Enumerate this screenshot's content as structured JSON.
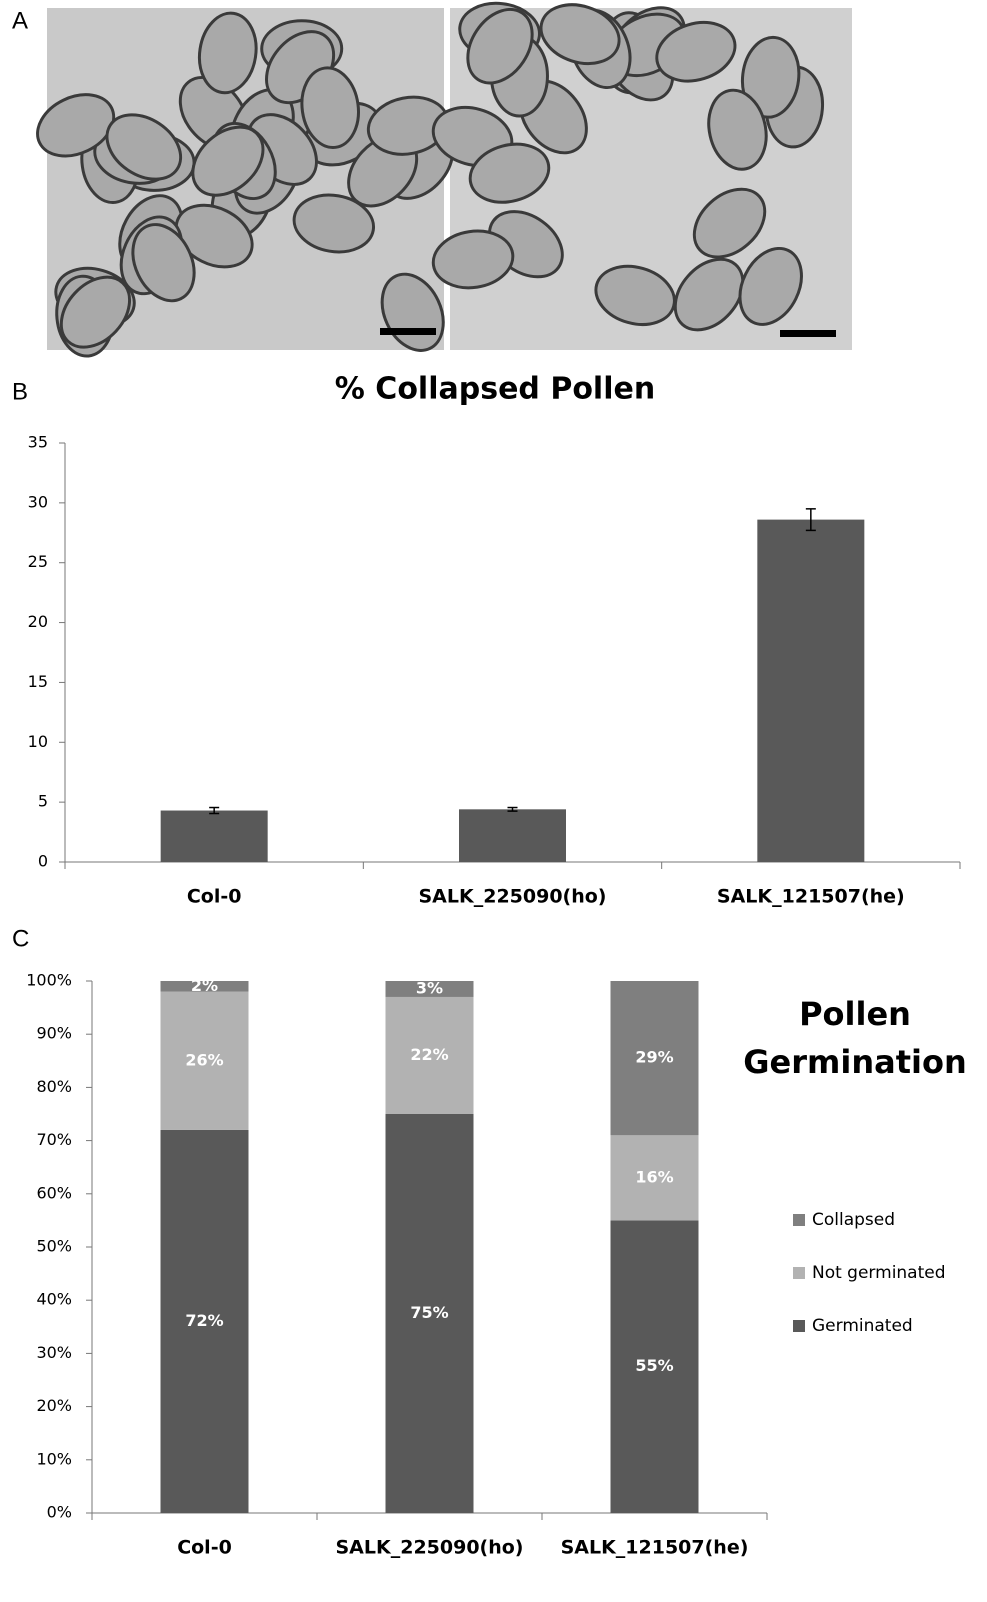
{
  "panel_labels": [
    "A",
    "B",
    "C"
  ],
  "chart_data": [
    {
      "type": "bar",
      "title": "% Collapsed Pollen",
      "categories": [
        "Col-0",
        "SALK_225090(ho)",
        "SALK_121507(he)"
      ],
      "values": [
        4.3,
        4.4,
        28.6
      ],
      "errors": [
        0.25,
        0.15,
        0.9
      ],
      "color": "#595959",
      "ylim": [
        0,
        35
      ],
      "yticks": [
        0,
        5,
        10,
        15,
        20,
        25,
        30,
        35
      ]
    },
    {
      "type": "stacked_bar",
      "title": "Pollen Germination",
      "categories": [
        "Col-0",
        "SALK_225090(ho)",
        "SALK_121507(he)"
      ],
      "series": [
        {
          "name": "Germinated",
          "color": "#595959",
          "values": [
            72,
            75,
            55
          ],
          "value_labels": [
            "72%",
            "75%",
            "55%"
          ]
        },
        {
          "name": "Not germinated",
          "color": "#b2b2b2",
          "values": [
            26,
            22,
            16
          ],
          "value_labels": [
            "26%",
            "22%",
            "16%"
          ]
        },
        {
          "name": "Collapsed",
          "color": "#7f7f7f",
          "values": [
            2,
            3,
            29
          ],
          "value_labels": [
            "2%",
            "3%",
            "29%"
          ]
        }
      ],
      "ylim": [
        0,
        100
      ],
      "yticks": [
        {
          "value": 0,
          "label": "0%"
        },
        {
          "value": 10,
          "label": "10%"
        },
        {
          "value": 20,
          "label": "20%"
        },
        {
          "value": 30,
          "label": "30%"
        },
        {
          "value": 40,
          "label": "40%"
        },
        {
          "value": 50,
          "label": "50%"
        },
        {
          "value": 60,
          "label": "60%"
        },
        {
          "value": 70,
          "label": "70%"
        },
        {
          "value": 80,
          "label": "80%"
        },
        {
          "value": 90,
          "label": "90%"
        },
        {
          "value": 100,
          "label": "100%"
        }
      ],
      "legend": "right"
    }
  ]
}
